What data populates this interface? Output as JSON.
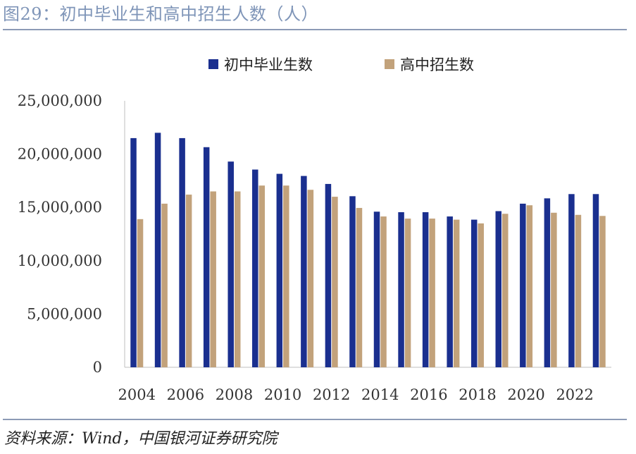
{
  "figure": {
    "title": "图29：初中毕业生和高中招生人数（人）",
    "source": "资料来源：Wind，中国银河证券研究院"
  },
  "chart_data": {
    "type": "bar",
    "title": "初中毕业生和高中招生人数（人）",
    "xlabel": "",
    "ylabel": "",
    "ylim": [
      0,
      25000000
    ],
    "yticks": [
      0,
      5000000,
      10000000,
      15000000,
      20000000,
      25000000
    ],
    "ytick_labels": [
      "0",
      "5,000,000",
      "10,000,000",
      "15,000,000",
      "20,000,000",
      "25,000,000"
    ],
    "categories": [
      "2004",
      "2005",
      "2006",
      "2007",
      "2008",
      "2009",
      "2010",
      "2011",
      "2012",
      "2013",
      "2014",
      "2015",
      "2016",
      "2017",
      "2018",
      "2019",
      "2020",
      "2021",
      "2022",
      "2023"
    ],
    "xtick_labels": [
      "2004",
      "",
      "2006",
      "",
      "2008",
      "",
      "2010",
      "",
      "2012",
      "",
      "2014",
      "",
      "2016",
      "",
      "2018",
      "",
      "2020",
      "",
      "2022",
      ""
    ],
    "legend_position": "top-center",
    "series": [
      {
        "name": "初中毕业生数",
        "color": "#1a2f8f",
        "values": [
          21500000,
          22000000,
          21500000,
          20650000,
          19300000,
          18550000,
          18150000,
          17950000,
          17200000,
          16050000,
          14600000,
          14550000,
          14550000,
          14150000,
          13850000,
          14650000,
          15350000,
          15850000,
          16250000,
          16250000
        ]
      },
      {
        "name": "高中招生数",
        "color": "#c2a27b",
        "values": [
          13900000,
          15350000,
          16200000,
          16500000,
          16500000,
          17050000,
          17050000,
          16650000,
          16000000,
          14950000,
          14150000,
          13950000,
          13950000,
          13850000,
          13500000,
          14400000,
          15200000,
          14500000,
          14300000,
          14200000
        ]
      }
    ]
  }
}
